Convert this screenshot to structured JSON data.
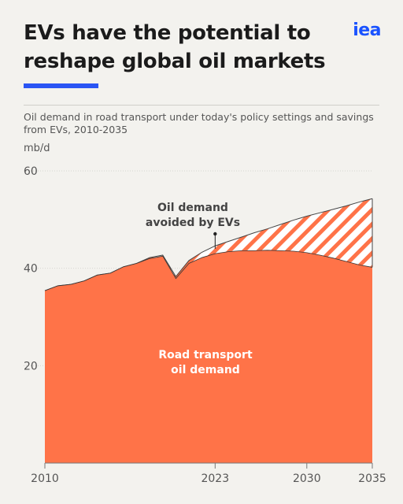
{
  "header": {
    "title": "EVs have the potential to\nreshape global oil markets",
    "logo_text": "iea"
  },
  "subtitle": "Oil demand in road transport under today's policy settings and savings from EVs, 2010-2035",
  "colors": {
    "brand_blue": "#2a55f4",
    "demand_fill": "#ff7348",
    "avoided_hatch": "#ff7348",
    "background": "#f3f2ee"
  },
  "chart_data": {
    "type": "area",
    "unit": "mb/d",
    "x": [
      2010,
      2011,
      2012,
      2013,
      2014,
      2015,
      2016,
      2017,
      2018,
      2019,
      2020,
      2021,
      2022,
      2023,
      2024,
      2025,
      2026,
      2027,
      2028,
      2029,
      2030,
      2031,
      2032,
      2033,
      2034,
      2035
    ],
    "series": [
      {
        "name": "Road transport oil demand",
        "values": [
          35.4,
          36.4,
          36.7,
          37.4,
          38.6,
          39.0,
          40.3,
          41.0,
          42.0,
          42.5,
          37.9,
          41.0,
          42.2,
          43.0,
          43.4,
          43.6,
          43.6,
          43.7,
          43.6,
          43.5,
          43.2,
          42.7,
          42.1,
          41.4,
          40.7,
          40.2
        ],
        "style": "solid"
      },
      {
        "name": "Oil demand avoided by EVs",
        "top_values": [
          35.4,
          36.4,
          36.7,
          37.4,
          38.6,
          39.0,
          40.3,
          41.0,
          42.2,
          42.7,
          38.3,
          41.6,
          43.3,
          44.6,
          45.5,
          46.4,
          47.3,
          48.1,
          49.0,
          49.9,
          50.7,
          51.4,
          52.1,
          52.8,
          53.6,
          54.3
        ],
        "style": "hatched"
      }
    ],
    "annotations": [
      {
        "text": "Oil demand\navoided by EVs",
        "color": "#444444"
      },
      {
        "text": "Road transport\noil demand",
        "color": "#ffffff"
      }
    ],
    "xticks": [
      2010,
      2023,
      2030,
      2035
    ],
    "yticks": [
      20,
      40,
      60
    ],
    "xlim": [
      2010,
      2035
    ],
    "ylim": [
      0,
      60
    ],
    "grid": true
  }
}
